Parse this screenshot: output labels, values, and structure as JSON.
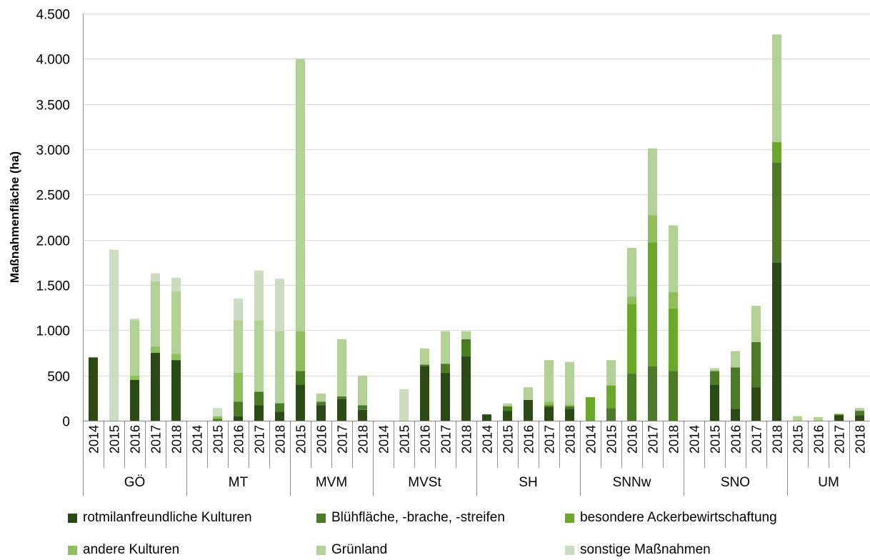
{
  "chart_data": {
    "type": "bar",
    "stacked": true,
    "ylabel": "Maßnahmenfläche (ha)",
    "xlabel": "",
    "ylim": [
      0,
      4500
    ],
    "yticks": [
      0,
      500,
      1000,
      1500,
      2000,
      2500,
      3000,
      3500,
      4000,
      4500
    ],
    "ytick_labels": [
      "0",
      "500",
      "1.000",
      "1.500",
      "2.000",
      "2.500",
      "3.000",
      "3.500",
      "4.000",
      "4.500"
    ],
    "grid": true,
    "legend_position": "bottom",
    "groups": [
      {
        "label": "GÖ",
        "years": [
          "2014",
          "2015",
          "2016",
          "2017",
          "2018"
        ]
      },
      {
        "label": "MT",
        "years": [
          "2014",
          "2015",
          "2016",
          "2017",
          "2018"
        ]
      },
      {
        "label": "MVM",
        "years": [
          "2015",
          "2016",
          "2017",
          "2018"
        ]
      },
      {
        "label": "MVSt",
        "years": [
          "2014",
          "2015",
          "2016",
          "2017",
          "2018"
        ]
      },
      {
        "label": "SH",
        "years": [
          "2014",
          "2015",
          "2016",
          "2017",
          "2018"
        ]
      },
      {
        "label": "SNNw",
        "years": [
          "2014",
          "2015",
          "2016",
          "2017",
          "2018"
        ]
      },
      {
        "label": "SNO",
        "years": [
          "2014",
          "2015",
          "2016",
          "2017",
          "2018"
        ]
      },
      {
        "label": "UM",
        "years": [
          "2015",
          "2016",
          "2017",
          "2018"
        ]
      }
    ],
    "series": [
      {
        "name": "rotmilanfreundliche Kulturen",
        "color": "#2b4a16",
        "values": [
          700,
          0,
          450,
          750,
          670,
          0,
          0,
          50,
          170,
          100,
          400,
          170,
          240,
          120,
          0,
          0,
          600,
          530,
          710,
          70,
          110,
          230,
          150,
          130,
          0,
          0,
          0,
          0,
          0,
          0,
          400,
          130,
          370,
          1750,
          0,
          0,
          60,
          60
        ]
      },
      {
        "name": "Blühfläche, -brache, -streifen",
        "color": "#4b7b26",
        "values": [
          0,
          0,
          0,
          0,
          0,
          0,
          20,
          160,
          150,
          90,
          150,
          40,
          30,
          50,
          0,
          0,
          20,
          100,
          190,
          0,
          50,
          0,
          20,
          30,
          0,
          140,
          520,
          600,
          550,
          0,
          150,
          460,
          500,
          1100,
          0,
          0,
          10,
          50
        ]
      },
      {
        "name": "besondere Ackerbewirtschaftung",
        "color": "#6aa72b",
        "values": [
          0,
          0,
          0,
          0,
          0,
          0,
          0,
          0,
          0,
          0,
          0,
          0,
          0,
          0,
          0,
          0,
          0,
          0,
          0,
          0,
          0,
          0,
          0,
          0,
          260,
          250,
          770,
          1370,
          690,
          0,
          0,
          0,
          0,
          230,
          0,
          0,
          0,
          0
        ]
      },
      {
        "name": "andere Kulturen",
        "color": "#8fbe5c",
        "values": [
          0,
          0,
          50,
          70,
          70,
          0,
          30,
          320,
          0,
          10,
          440,
          0,
          0,
          0,
          0,
          0,
          0,
          0,
          0,
          0,
          0,
          0,
          40,
          20,
          0,
          0,
          80,
          300,
          180,
          0,
          0,
          0,
          0,
          0,
          0,
          0,
          0,
          0
        ]
      },
      {
        "name": "Grünland",
        "color": "#b3d196",
        "values": [
          0,
          0,
          610,
          720,
          690,
          0,
          0,
          580,
          790,
          790,
          3010,
          90,
          630,
          330,
          0,
          0,
          180,
          360,
          90,
          0,
          30,
          140,
          460,
          470,
          0,
          280,
          540,
          740,
          740,
          0,
          30,
          180,
          400,
          1190,
          50,
          40,
          10,
          30
        ]
      },
      {
        "name": "sonstige Maßnahmen",
        "color": "#ccdcc0",
        "values": [
          0,
          1890,
          20,
          90,
          150,
          0,
          90,
          240,
          550,
          580,
          0,
          0,
          0,
          0,
          0,
          350,
          0,
          0,
          0,
          0,
          0,
          0,
          0,
          0,
          0,
          0,
          0,
          0,
          0,
          0,
          0,
          0,
          0,
          0,
          0,
          0,
          0,
          0
        ]
      }
    ]
  },
  "legend": {
    "items": [
      {
        "label": "rotmilanfreundliche Kulturen",
        "color": "#2b4a16"
      },
      {
        "label": "Blühfläche, -brache, -streifen",
        "color": "#4b7b26"
      },
      {
        "label": "besondere Ackerbewirtschaftung",
        "color": "#6aa72b"
      },
      {
        "label": "andere Kulturen",
        "color": "#8fbe5c"
      },
      {
        "label": "Grünland",
        "color": "#b3d196"
      },
      {
        "label": "sonstige Maßnahmen",
        "color": "#ccdcc0"
      }
    ]
  }
}
